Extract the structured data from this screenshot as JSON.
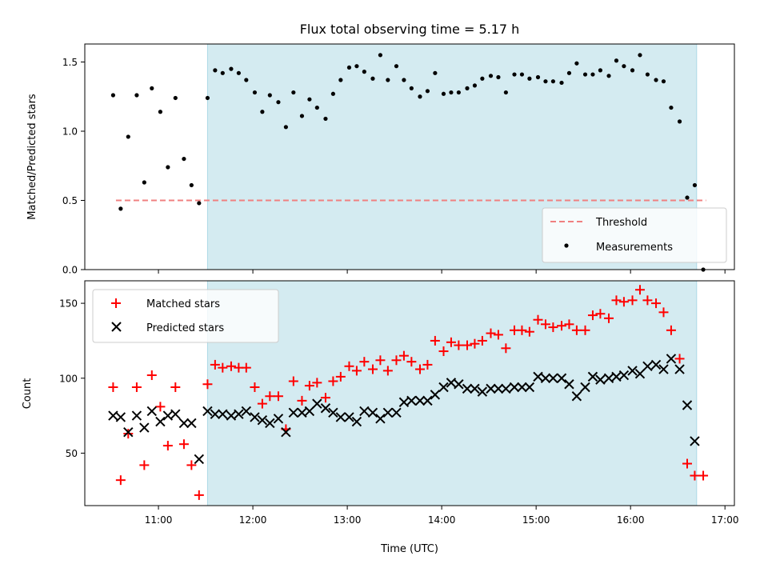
{
  "figure": {
    "title": "Flux total observing time = 5.17 h",
    "xlabel": "Time (UTC)"
  },
  "colors": {
    "span": "#d4ebf1",
    "span_edge": "#add8e6",
    "threshold": "#f08080",
    "measurements": "#000000",
    "matched": "#ff0000",
    "predicted": "#000000"
  },
  "chart_data": [
    {
      "type": "scatter",
      "name": "top",
      "title": "Flux total observing time = 5.17 h",
      "xlabel": "",
      "ylabel": "Matched/Predicted stars",
      "xlim": [
        10.22,
        17.1
      ],
      "ylim": [
        0,
        1.63
      ],
      "xticks": [
        11,
        12,
        13,
        14,
        15,
        16,
        17
      ],
      "xtick_labels": [
        "",
        "",
        "",
        "",
        "",
        "",
        ""
      ],
      "yticks": [
        0,
        0.5,
        1.0,
        1.5
      ],
      "ytick_labels": [
        "0.0",
        "0.5",
        "1.0",
        "1.5"
      ],
      "span": [
        11.52,
        16.7
      ],
      "threshold": {
        "y": 0.5,
        "x": [
          10.55,
          16.8
        ],
        "label": "Threshold"
      },
      "legend": {
        "position": "lower-right",
        "entries": [
          "Threshold",
          "Measurements"
        ]
      },
      "series": [
        {
          "name": "Measurements",
          "x": [
            10.52,
            10.6,
            10.68,
            10.77,
            10.85,
            10.93,
            11.02,
            11.1,
            11.18,
            11.27,
            11.35,
            11.43,
            11.52,
            11.6,
            11.68,
            11.77,
            11.85,
            11.93,
            12.02,
            12.1,
            12.18,
            12.27,
            12.35,
            12.43,
            12.52,
            12.6,
            12.68,
            12.77,
            12.85,
            12.93,
            13.02,
            13.1,
            13.18,
            13.27,
            13.35,
            13.43,
            13.52,
            13.6,
            13.68,
            13.77,
            13.85,
            13.93,
            14.02,
            14.1,
            14.18,
            14.27,
            14.35,
            14.43,
            14.52,
            14.6,
            14.68,
            14.77,
            14.85,
            14.93,
            15.02,
            15.1,
            15.18,
            15.27,
            15.35,
            15.43,
            15.52,
            15.6,
            15.68,
            15.77,
            15.85,
            15.93,
            16.02,
            16.1,
            16.18,
            16.27,
            16.35,
            16.43,
            16.52,
            16.6,
            16.68,
            16.77
          ],
          "y": [
            1.26,
            0.44,
            0.96,
            1.26,
            0.63,
            1.31,
            1.14,
            0.74,
            1.24,
            0.8,
            0.61,
            0.48,
            1.24,
            1.44,
            1.42,
            1.45,
            1.42,
            1.37,
            1.28,
            1.14,
            1.26,
            1.21,
            1.03,
            1.28,
            1.11,
            1.23,
            1.17,
            1.09,
            1.27,
            1.37,
            1.46,
            1.47,
            1.43,
            1.38,
            1.55,
            1.37,
            1.47,
            1.37,
            1.31,
            1.25,
            1.29,
            1.42,
            1.27,
            1.28,
            1.28,
            1.31,
            1.33,
            1.38,
            1.4,
            1.39,
            1.28,
            1.41,
            1.41,
            1.38,
            1.39,
            1.36,
            1.36,
            1.35,
            1.42,
            1.49,
            1.41,
            1.41,
            1.44,
            1.4,
            1.51,
            1.47,
            1.44,
            1.55,
            1.41,
            1.37,
            1.36,
            1.17,
            1.07,
            0.52,
            0.61,
            0.0
          ]
        }
      ]
    },
    {
      "type": "scatter",
      "name": "bottom",
      "xlabel": "Time (UTC)",
      "ylabel": "Count",
      "xlim": [
        10.22,
        17.1
      ],
      "ylim": [
        15,
        165
      ],
      "xticks": [
        11,
        12,
        13,
        14,
        15,
        16,
        17
      ],
      "xtick_labels": [
        "11:00",
        "12:00",
        "13:00",
        "14:00",
        "15:00",
        "16:00",
        "17:00"
      ],
      "yticks": [
        50,
        100,
        150
      ],
      "ytick_labels": [
        "50",
        "100",
        "150"
      ],
      "span": [
        11.52,
        16.7
      ],
      "legend": {
        "position": "top-left",
        "entries": [
          "Matched stars",
          "Predicted stars"
        ]
      },
      "series": [
        {
          "name": "Matched stars",
          "x": [
            10.52,
            10.6,
            10.68,
            10.77,
            10.85,
            10.93,
            11.02,
            11.1,
            11.18,
            11.27,
            11.35,
            11.43,
            11.52,
            11.6,
            11.68,
            11.77,
            11.85,
            11.93,
            12.02,
            12.1,
            12.18,
            12.27,
            12.35,
            12.43,
            12.52,
            12.6,
            12.68,
            12.77,
            12.85,
            12.93,
            13.02,
            13.1,
            13.18,
            13.27,
            13.35,
            13.43,
            13.52,
            13.6,
            13.68,
            13.77,
            13.85,
            13.93,
            14.02,
            14.1,
            14.18,
            14.27,
            14.35,
            14.43,
            14.52,
            14.6,
            14.68,
            14.77,
            14.85,
            14.93,
            15.02,
            15.1,
            15.18,
            15.27,
            15.35,
            15.43,
            15.52,
            15.6,
            15.68,
            15.77,
            15.85,
            15.93,
            16.02,
            16.1,
            16.18,
            16.27,
            16.35,
            16.43,
            16.52,
            16.6,
            16.68,
            16.77
          ],
          "y": [
            94,
            32,
            63,
            94,
            42,
            102,
            81,
            55,
            94,
            56,
            42,
            22,
            96,
            109,
            107,
            108,
            107,
            107,
            94,
            83,
            88,
            88,
            66,
            98,
            85,
            95,
            97,
            87,
            98,
            101,
            108,
            105,
            111,
            106,
            112,
            105,
            112,
            115,
            111,
            106,
            109,
            125,
            118,
            124,
            122,
            122,
            123,
            125,
            130,
            129,
            120,
            132,
            132,
            131,
            139,
            136,
            134,
            135,
            136,
            132,
            132,
            142,
            143,
            140,
            152,
            151,
            152,
            159,
            152,
            150,
            144,
            132,
            113,
            43,
            35,
            35
          ]
        },
        {
          "name": "Predicted stars",
          "x": [
            10.52,
            10.6,
            10.68,
            10.77,
            10.85,
            10.93,
            11.02,
            11.1,
            11.18,
            11.27,
            11.35,
            11.43,
            11.52,
            11.6,
            11.68,
            11.77,
            11.85,
            11.93,
            12.02,
            12.1,
            12.18,
            12.27,
            12.35,
            12.43,
            12.52,
            12.6,
            12.68,
            12.77,
            12.85,
            12.93,
            13.02,
            13.1,
            13.18,
            13.27,
            13.35,
            13.43,
            13.52,
            13.6,
            13.68,
            13.77,
            13.85,
            13.93,
            14.02,
            14.1,
            14.18,
            14.27,
            14.35,
            14.43,
            14.52,
            14.6,
            14.68,
            14.77,
            14.85,
            14.93,
            15.02,
            15.1,
            15.18,
            15.27,
            15.35,
            15.43,
            15.52,
            15.6,
            15.68,
            15.77,
            15.85,
            15.93,
            16.02,
            16.1,
            16.18,
            16.27,
            16.35,
            16.43,
            16.52,
            16.6,
            16.68
          ],
          "y": [
            75,
            74,
            64,
            75,
            67,
            78,
            71,
            75,
            76,
            70,
            70,
            46,
            78,
            76,
            76,
            75,
            76,
            78,
            74,
            72,
            70,
            73,
            64,
            77,
            77,
            78,
            83,
            80,
            77,
            74,
            74,
            71,
            78,
            77,
            73,
            77,
            77,
            84,
            85,
            85,
            85,
            89,
            94,
            97,
            96,
            93,
            93,
            91,
            93,
            93,
            93,
            94,
            94,
            94,
            101,
            100,
            100,
            100,
            96,
            88,
            94,
            101,
            99,
            100,
            101,
            102,
            105,
            103,
            108,
            109,
            106,
            113,
            106,
            82,
            58
          ]
        }
      ]
    }
  ]
}
